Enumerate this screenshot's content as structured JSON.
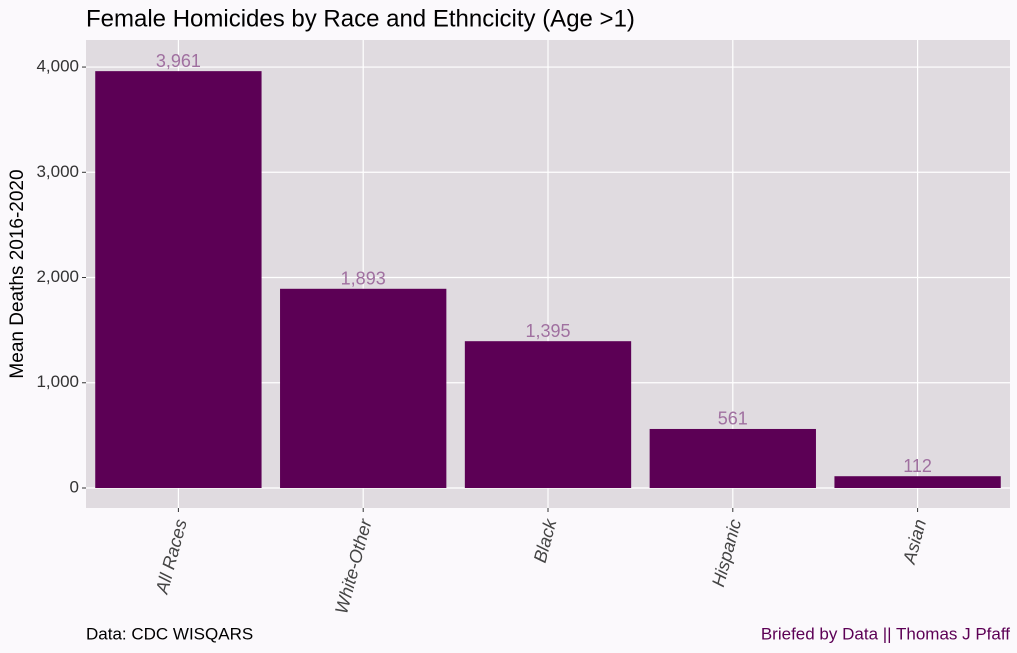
{
  "chart_data": {
    "type": "bar",
    "title": "Female Homicides by Race and Ethncicity (Age >1)",
    "y_label": "Mean Deaths 2016-2020",
    "categories": [
      "All Races",
      "White-Other",
      "Black",
      "Hispanic",
      "Asian"
    ],
    "values": [
      3961,
      1893,
      1395,
      561,
      112
    ],
    "value_labels": [
      "3,961",
      "1,893",
      "1,395",
      "561",
      "112"
    ],
    "color": "#5c0055",
    "ylim": [
      -190,
      4257
    ],
    "yticks": [
      0,
      {
        "value": 1000,
        "label": "1,000"
      },
      {
        "value": 2000,
        "label": "2,000"
      },
      {
        "value": 3000,
        "label": "3,000"
      },
      {
        "value": 4000,
        "label": "4,000"
      }
    ],
    "grid": true,
    "caption_left": "Data: CDC WISQARS",
    "caption_right": "Briefed by Data || Thomas J Pfaff"
  }
}
